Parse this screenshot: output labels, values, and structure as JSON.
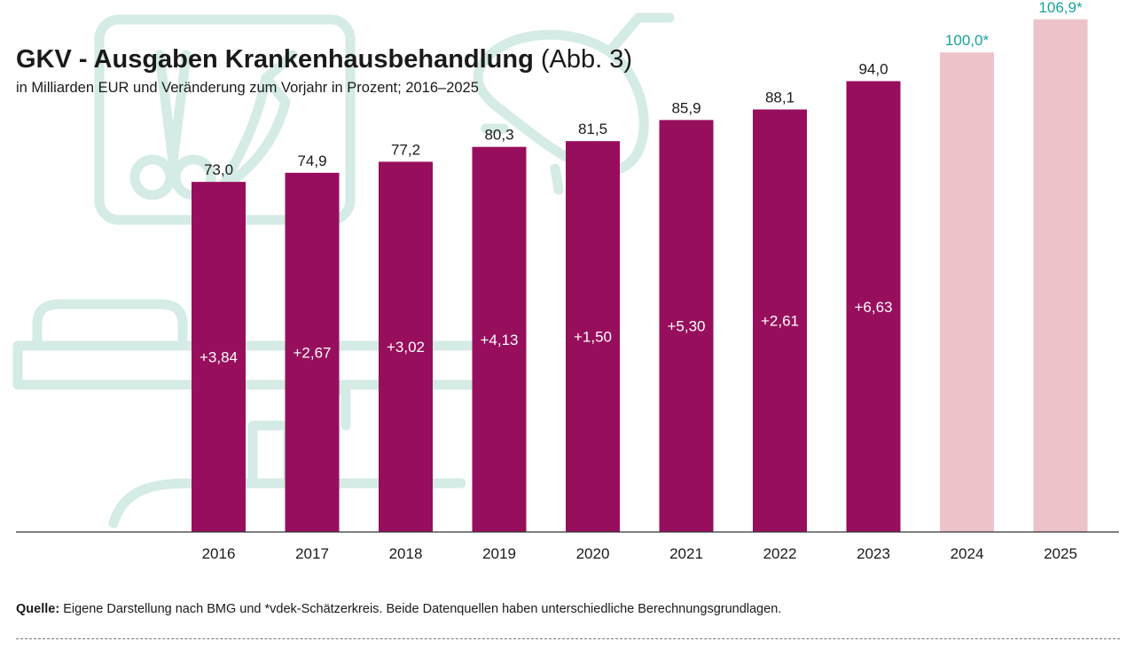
{
  "title": "GKV - Ausgaben Krankenhausbehandlung",
  "title_suffix": "(Abb. 3)",
  "subtitle": "in Milliarden EUR und Veränderung zum Vorjahr in Prozent; 2016–2025",
  "source_label": "Quelle:",
  "source_text": "Eigene Darstellung nach BMG und *vdek-Schätzerkreis. Beide Datenquellen haben unterschiedliche Berechnungsgrundlagen.",
  "colors": {
    "actual": "#970f5c",
    "estimate": "#edc3c9",
    "estimate_label": "#1aa39a",
    "background_art": "#d4ebe6",
    "axis": "#333333"
  },
  "chart_data": {
    "type": "bar",
    "title": "GKV - Ausgaben Krankenhausbehandlung (Abb. 3)",
    "xlabel": "",
    "ylabel": "",
    "ylim": [
      0,
      110
    ],
    "grid": false,
    "legend": "none",
    "categories": [
      "2016",
      "2017",
      "2018",
      "2019",
      "2020",
      "2021",
      "2022",
      "2023",
      "2024",
      "2025"
    ],
    "values": [
      73.0,
      74.9,
      77.2,
      80.3,
      81.5,
      85.9,
      88.1,
      94.0,
      100.0,
      106.9
    ],
    "value_labels": [
      "73,0",
      "74,9",
      "77,2",
      "80,3",
      "81,5",
      "85,9",
      "88,1",
      "94,0",
      "100,0*",
      "106,9*"
    ],
    "changes": [
      "+3,84",
      "+2,67",
      "+3,02",
      "+4,13",
      "+1,50",
      "+5,30",
      "+2,61",
      "+6,63",
      "",
      ""
    ],
    "estimated": [
      false,
      false,
      false,
      false,
      false,
      false,
      false,
      false,
      true,
      true
    ]
  }
}
